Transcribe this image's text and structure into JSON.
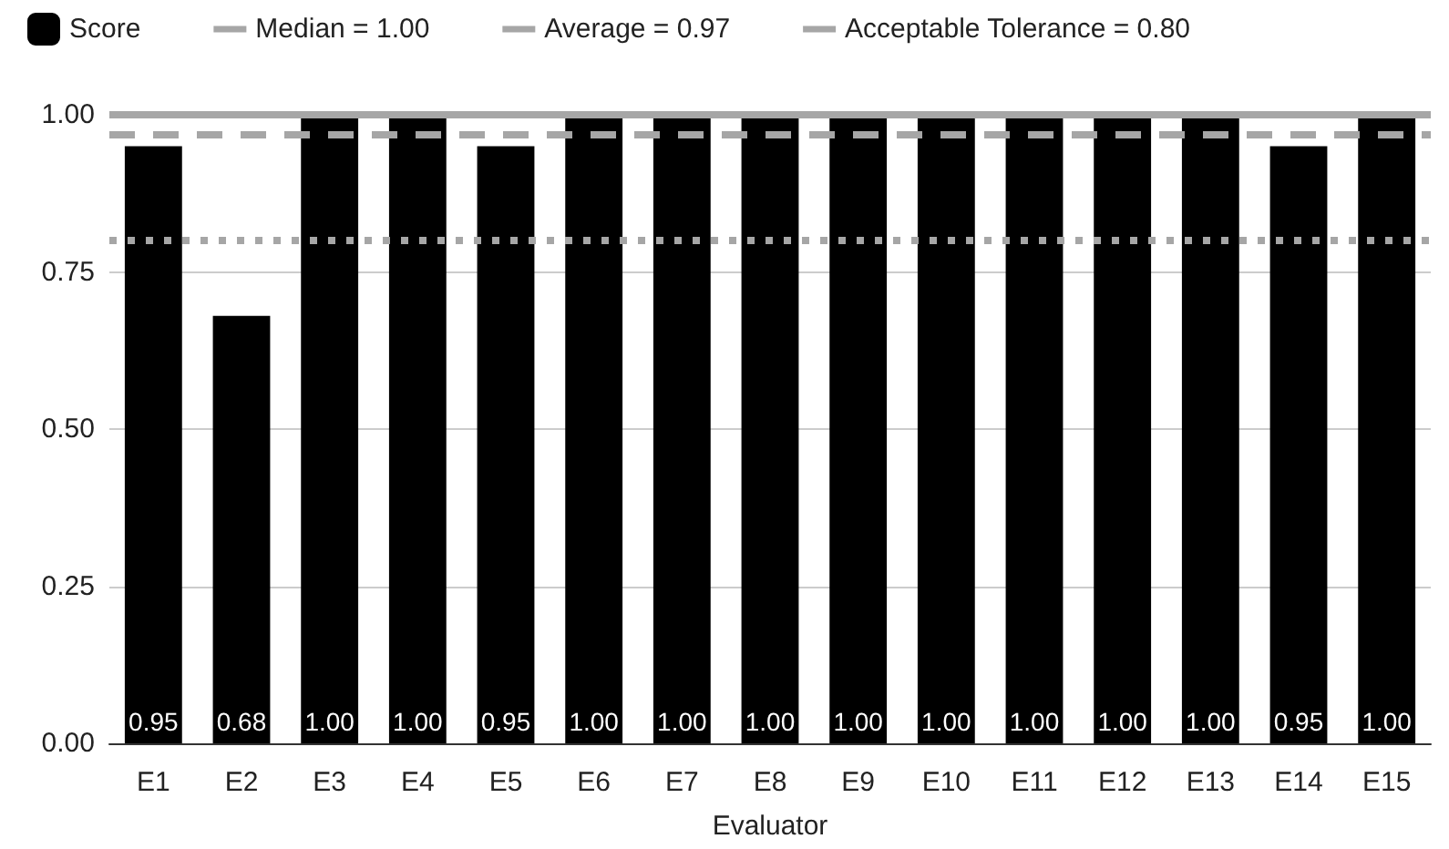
{
  "chart_data": {
    "type": "bar",
    "xlabel": "Evaluator",
    "categories": [
      "E1",
      "E2",
      "E3",
      "E4",
      "E5",
      "E6",
      "E7",
      "E8",
      "E9",
      "E10",
      "E11",
      "E12",
      "E13",
      "E14",
      "E15"
    ],
    "series": [
      {
        "name": "Score",
        "color": "#000000",
        "values": [
          0.95,
          0.68,
          1,
          1,
          0.95,
          1,
          1,
          1,
          1,
          1,
          1,
          1,
          1,
          0.95,
          1
        ],
        "value_labels": [
          "0.95",
          "0.68",
          "1.00",
          "1.00",
          "0.95",
          "1.00",
          "1.00",
          "1.00",
          "1.00",
          "1.00",
          "1.00",
          "1.00",
          "1.00",
          "0.95",
          "1.00"
        ]
      }
    ],
    "ylim": [
      0,
      1
    ],
    "yticks": [
      {
        "value": 0,
        "label": "0.00"
      },
      {
        "value": 0.25,
        "label": "0.25"
      },
      {
        "value": 0.5,
        "label": "0.50"
      },
      {
        "value": 0.75,
        "label": "0.75"
      },
      {
        "value": 1,
        "label": "1.00"
      }
    ],
    "ref_lines": [
      {
        "axis": "y",
        "value": 1,
        "label": "Median = 1.00",
        "color": "#a6a6a6",
        "line_style": "solid"
      },
      {
        "axis": "y",
        "value": 0.97,
        "label": "Average = 0.97",
        "color": "#a6a6a6",
        "line_style": "dashed"
      },
      {
        "axis": "y",
        "value": 0.8,
        "label": "Acceptable Tolerance = 0.80",
        "color": "#a6a6a6",
        "line_style": "dotted"
      }
    ],
    "grid": "y",
    "legend": "top"
  }
}
